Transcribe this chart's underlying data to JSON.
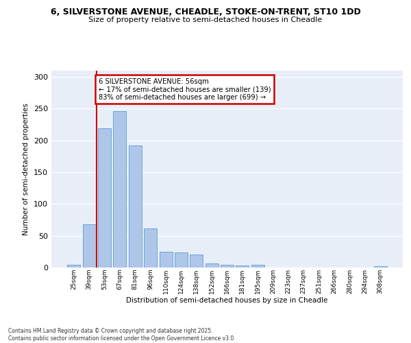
{
  "title_line1": "6, SILVERSTONE AVENUE, CHEADLE, STOKE-ON-TRENT, ST10 1DD",
  "title_line2": "Size of property relative to semi-detached houses in Cheadle",
  "xlabel": "Distribution of semi-detached houses by size in Cheadle",
  "ylabel": "Number of semi-detached properties",
  "categories": [
    "25sqm",
    "39sqm",
    "53sqm",
    "67sqm",
    "81sqm",
    "96sqm",
    "110sqm",
    "124sqm",
    "138sqm",
    "152sqm",
    "166sqm",
    "181sqm",
    "195sqm",
    "209sqm",
    "223sqm",
    "237sqm",
    "251sqm",
    "266sqm",
    "280sqm",
    "294sqm",
    "308sqm"
  ],
  "values": [
    4,
    68,
    219,
    246,
    192,
    61,
    25,
    24,
    20,
    7,
    4,
    3,
    4,
    0,
    0,
    0,
    0,
    0,
    0,
    0,
    2
  ],
  "bar_color": "#aec6e8",
  "bar_edge_color": "#5b9bd5",
  "vline_index": 2,
  "vline_color": "#cc0000",
  "annotation_text": "6 SILVERSTONE AVENUE: 56sqm\n← 17% of semi-detached houses are smaller (139)\n83% of semi-detached houses are larger (699) →",
  "annotation_box_edgecolor": "#cc0000",
  "ylim": [
    0,
    310
  ],
  "yticks": [
    0,
    50,
    100,
    150,
    200,
    250,
    300
  ],
  "bg_color": "#e8eef8",
  "grid_color": "#ffffff",
  "footer_text": "Contains HM Land Registry data © Crown copyright and database right 2025.\nContains public sector information licensed under the Open Government Licence v3.0."
}
